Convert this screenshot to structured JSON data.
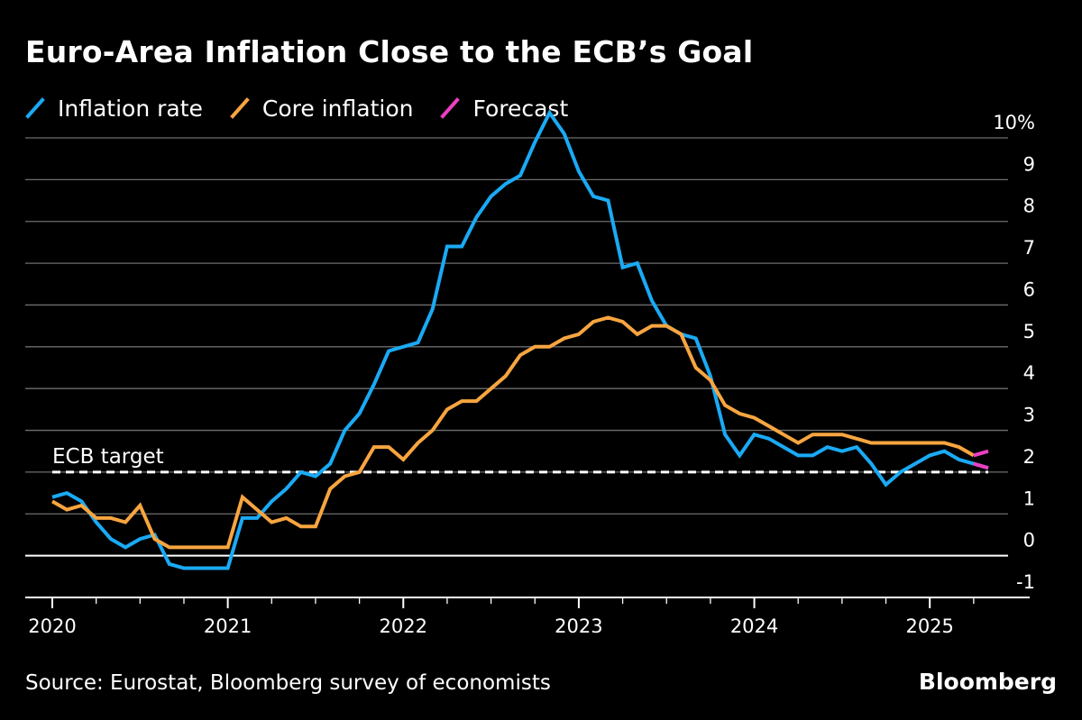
{
  "title": "Euro-Area Inflation Close to the ECB’s Goal",
  "legend": [
    {
      "label": "Inflation rate",
      "color": "#1aaaf5"
    },
    {
      "label": "Core inflation",
      "color": "#f7a540"
    },
    {
      "label": "Forecast",
      "color": "#ec3fc2"
    }
  ],
  "source": "Source: Eurostat, Bloomberg survey of economists",
  "brand": "Bloomberg",
  "chart_data": {
    "type": "line",
    "title": "Euro-Area Inflation Close to the ECB’s Goal",
    "ylabel": "%",
    "ylim": [
      -1,
      10
    ],
    "y_ticks": [
      -1,
      0,
      1,
      2,
      3,
      4,
      5,
      6,
      7,
      8,
      9,
      10
    ],
    "y_tick_labels": [
      "-1",
      "0",
      "1",
      "2",
      "3",
      "4",
      "5",
      "6",
      "7",
      "8",
      "9",
      "10%"
    ],
    "x_ticks": [
      2020,
      2021,
      2022,
      2023,
      2024,
      2025
    ],
    "x_tick_labels": [
      "2020",
      "2021",
      "2022",
      "2023",
      "2024",
      "2025"
    ],
    "x_start": 2020.0,
    "month_step": 0.0833333,
    "target": {
      "label": "ECB target",
      "value": 2.0
    },
    "series": [
      {
        "name": "Inflation rate",
        "color": "#1aaaf5",
        "values": [
          1.4,
          1.5,
          1.3,
          0.8,
          0.4,
          0.2,
          0.4,
          0.5,
          -0.2,
          -0.3,
          -0.3,
          -0.3,
          -0.3,
          0.9,
          0.9,
          1.3,
          1.6,
          2.0,
          1.9,
          2.2,
          3.0,
          3.4,
          4.1,
          4.9,
          5.0,
          5.1,
          5.9,
          7.4,
          7.4,
          8.1,
          8.6,
          8.9,
          9.1,
          9.9,
          10.6,
          10.1,
          9.2,
          8.6,
          8.5,
          6.9,
          7.0,
          6.1,
          5.5,
          5.3,
          5.2,
          4.3,
          2.9,
          2.4,
          2.9,
          2.8,
          2.6,
          2.4,
          2.4,
          2.6,
          2.5,
          2.6,
          2.2,
          1.7,
          2.0,
          2.2,
          2.4,
          2.5,
          2.3,
          2.2,
          2.1
        ]
      },
      {
        "name": "Core inflation",
        "color": "#f7a540",
        "values": [
          1.3,
          1.1,
          1.2,
          0.9,
          0.9,
          0.8,
          1.2,
          0.4,
          0.2,
          0.2,
          0.2,
          0.2,
          0.2,
          1.4,
          1.1,
          0.8,
          0.9,
          0.7,
          0.7,
          1.6,
          1.9,
          2.0,
          2.6,
          2.6,
          2.3,
          2.7,
          3.0,
          3.5,
          3.7,
          3.7,
          4.0,
          4.3,
          4.8,
          5.0,
          5.0,
          5.2,
          5.3,
          5.6,
          5.7,
          5.6,
          5.3,
          5.5,
          5.5,
          5.3,
          4.5,
          4.2,
          3.6,
          3.4,
          3.3,
          3.1,
          2.9,
          2.7,
          2.9,
          2.9,
          2.9,
          2.8,
          2.7,
          2.7,
          2.7,
          2.7,
          2.7,
          2.7,
          2.6,
          2.4
        ]
      },
      {
        "name": "Forecast",
        "color": "#ec3fc2",
        "segments": [
          {
            "x": [
              2025.25,
              2025.333
            ],
            "values": [
              2.4,
              2.5
            ]
          },
          {
            "x": [
              2025.25,
              2025.333
            ],
            "values": [
              2.2,
              2.1
            ]
          }
        ]
      }
    ]
  }
}
